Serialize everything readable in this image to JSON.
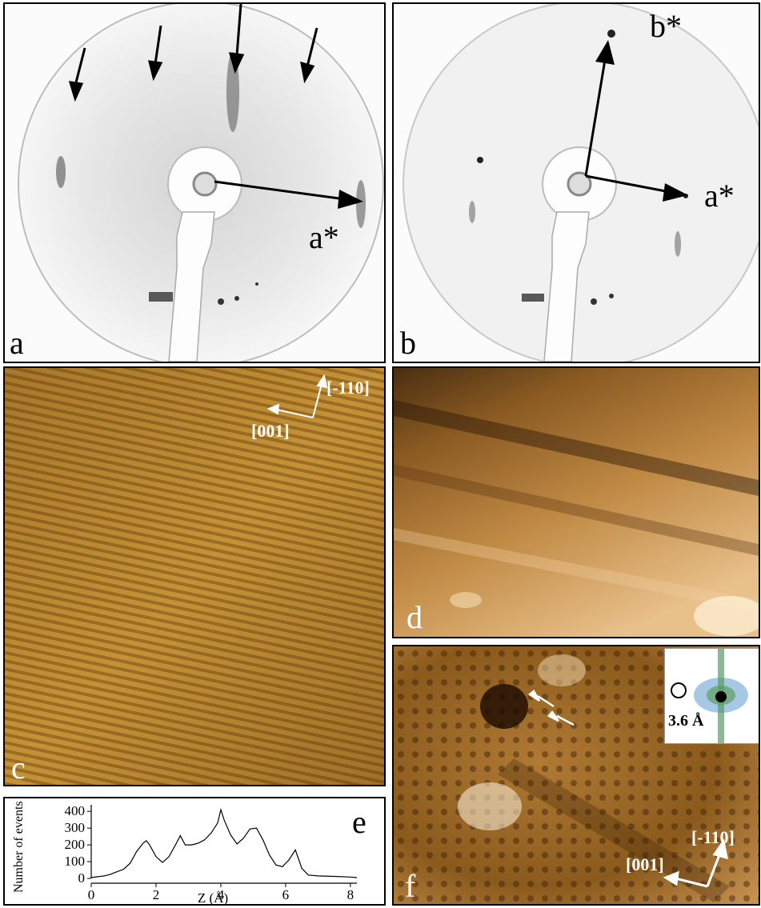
{
  "panels": {
    "a": {
      "label": "a",
      "vector_label": "a*"
    },
    "b": {
      "label": "b",
      "vector_label_a": "a*",
      "vector_label_b": "b*"
    },
    "c": {
      "label": "c",
      "dir_x": "[001]",
      "dir_y": "[-110]"
    },
    "d": {
      "label": "d"
    },
    "e": {
      "label": "e"
    },
    "f": {
      "label": "f",
      "dir_x": "[001]",
      "dir_y": "[-110]",
      "inset_label": "3.6 Å"
    }
  },
  "chart_data": {
    "type": "line",
    "xlabel": "Z (Å)",
    "ylabel": "Number of events",
    "xlim": [
      0,
      8.2
    ],
    "ylim": [
      0,
      420
    ],
    "xticks": [
      0,
      2,
      4,
      6,
      8
    ],
    "yticks": [
      0,
      100,
      200,
      300,
      400
    ],
    "x": [
      0,
      0.2,
      0.4,
      0.6,
      0.8,
      1.0,
      1.2,
      1.4,
      1.6,
      1.7,
      1.8,
      2.0,
      2.2,
      2.4,
      2.6,
      2.75,
      2.9,
      3.1,
      3.3,
      3.5,
      3.7,
      3.9,
      4.0,
      4.1,
      4.3,
      4.5,
      4.7,
      4.9,
      5.1,
      5.3,
      5.5,
      5.7,
      5.9,
      6.1,
      6.3,
      6.5,
      6.7,
      7.0,
      7.5,
      8.0,
      8.2
    ],
    "y": [
      5,
      10,
      15,
      25,
      40,
      55,
      90,
      160,
      210,
      225,
      200,
      130,
      95,
      130,
      200,
      255,
      200,
      200,
      210,
      230,
      270,
      330,
      410,
      350,
      260,
      205,
      240,
      295,
      300,
      230,
      140,
      80,
      70,
      110,
      170,
      60,
      20,
      15,
      12,
      8,
      5
    ]
  }
}
